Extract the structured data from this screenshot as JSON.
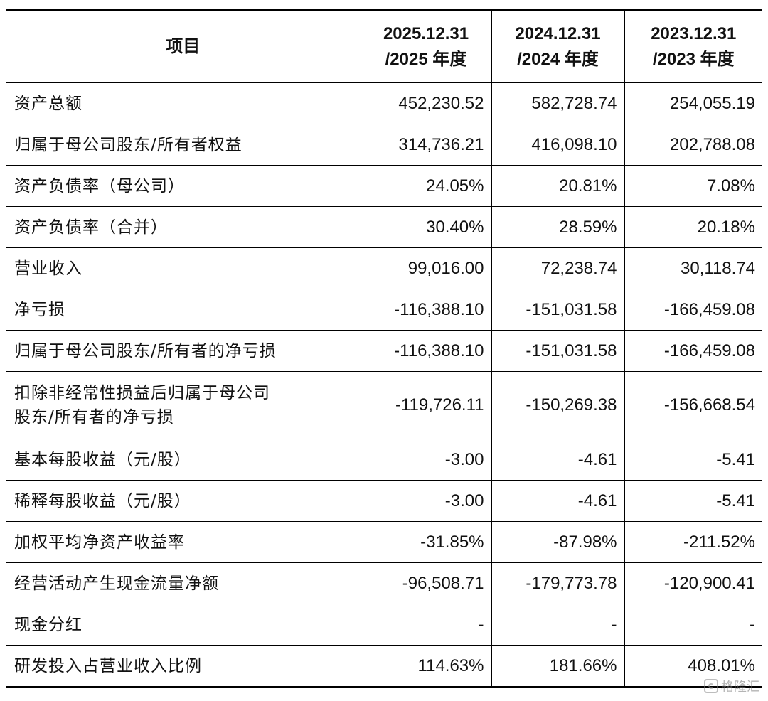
{
  "table": {
    "header": {
      "item": "项目",
      "periods": [
        {
          "date": "2025.12.31",
          "year": "/2025 年度"
        },
        {
          "date": "2024.12.31",
          "year": "/2024 年度"
        },
        {
          "date": "2023.12.31",
          "year": "/2023 年度"
        }
      ]
    },
    "rows": [
      {
        "label": "资产总额",
        "values": [
          "452,230.52",
          "582,728.74",
          "254,055.19"
        ]
      },
      {
        "label": "归属于母公司股东/所有者权益",
        "values": [
          "314,736.21",
          "416,098.10",
          "202,788.08"
        ]
      },
      {
        "label": "资产负债率（母公司）",
        "values": [
          "24.05%",
          "20.81%",
          "7.08%"
        ]
      },
      {
        "label": "资产负债率（合并）",
        "values": [
          "30.40%",
          "28.59%",
          "20.18%"
        ]
      },
      {
        "label": "营业收入",
        "values": [
          "99,016.00",
          "72,238.74",
          "30,118.74"
        ]
      },
      {
        "label": "净亏损",
        "values": [
          "-116,388.10",
          "-151,031.58",
          "-166,459.08"
        ]
      },
      {
        "label": "归属于母公司股东/所有者的净亏损",
        "values": [
          "-116,388.10",
          "-151,031.58",
          "-166,459.08"
        ]
      },
      {
        "label": "扣除非经常性损益后归属于母公司",
        "label2": "股东/所有者的净亏损",
        "values": [
          "-119,726.11",
          "-150,269.38",
          "-156,668.54"
        ]
      },
      {
        "label": "基本每股收益（元/股）",
        "values": [
          "-3.00",
          "-4.61",
          "-5.41"
        ]
      },
      {
        "label": "稀释每股收益（元/股）",
        "values": [
          "-3.00",
          "-4.61",
          "-5.41"
        ]
      },
      {
        "label": "加权平均净资产收益率",
        "values": [
          "-31.85%",
          "-87.98%",
          "-211.52%"
        ]
      },
      {
        "label": "经营活动产生现金流量净额",
        "values": [
          "-96,508.71",
          "-179,773.78",
          "-120,900.41"
        ]
      },
      {
        "label": "现金分红",
        "values": [
          "-",
          "-",
          "-"
        ]
      },
      {
        "label": "研发投入占营业收入比例",
        "values": [
          "114.63%",
          "181.66%",
          "408.01%"
        ]
      }
    ]
  },
  "watermark": {
    "text": "格隆汇",
    "icon": "gelonghui-logo-icon"
  }
}
